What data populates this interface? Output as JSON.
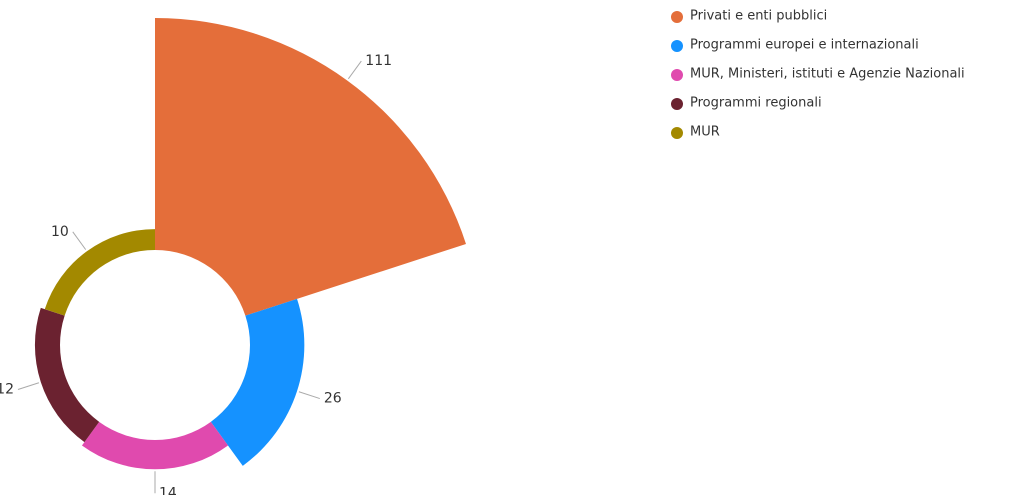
{
  "chart_data": {
    "type": "pie",
    "categories": [
      "Privati e enti pubblici",
      "Programmi europei e internazionali",
      "MUR, Ministeri, istituti e Agenzie Nazionali",
      "Programmi regionali",
      "MUR"
    ],
    "values": [
      111,
      26,
      14,
      12,
      10
    ],
    "colors": [
      "#e46e3a",
      "#1592ff",
      "#e04aae",
      "#6b2230",
      "#a38900"
    ],
    "legend": "top-right"
  }
}
